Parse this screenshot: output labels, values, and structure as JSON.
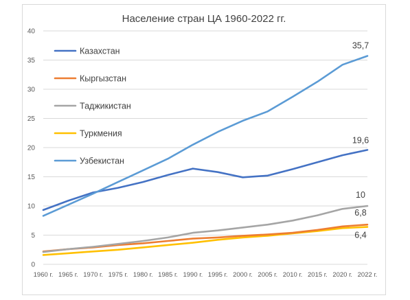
{
  "chart_data": {
    "type": "line",
    "title": "Население стран ЦА 1960-2022 гг.",
    "xlabel": "",
    "ylabel": "",
    "ylim": [
      0,
      40
    ],
    "yticks": [
      0,
      5,
      10,
      15,
      20,
      25,
      30,
      35,
      40
    ],
    "grid": true,
    "legend_position": "top-left",
    "categories": [
      "1960 г.",
      "1965 г.",
      "1970 г.",
      "1975 г.",
      "1980 г.",
      "1985 г.",
      "1990 г.",
      "1995 г.",
      "2000 г.",
      "2005 г.",
      "2010 г.",
      "2015 г.",
      "2020 г.",
      "2022 г."
    ],
    "series": [
      {
        "name": "Казахстан",
        "color": "#4472c4",
        "values": [
          9.3,
          10.9,
          12.3,
          13.1,
          14.1,
          15.3,
          16.4,
          15.8,
          14.9,
          15.2,
          16.3,
          17.5,
          18.7,
          19.6
        ],
        "end_label": "19,6"
      },
      {
        "name": "Кыргызстан",
        "color": "#ed7d31",
        "values": [
          2.2,
          2.6,
          2.9,
          3.3,
          3.6,
          4.0,
          4.4,
          4.6,
          4.9,
          5.1,
          5.4,
          5.9,
          6.5,
          6.8
        ],
        "end_label": "6,8"
      },
      {
        "name": "Таджикистан",
        "color": "#a5a5a5",
        "values": [
          2.1,
          2.6,
          3.0,
          3.5,
          4.0,
          4.6,
          5.4,
          5.8,
          6.3,
          6.8,
          7.5,
          8.4,
          9.5,
          10.0
        ],
        "end_label": "10"
      },
      {
        "name": "Туркмения",
        "color": "#ffc000",
        "values": [
          1.6,
          1.9,
          2.2,
          2.5,
          2.9,
          3.3,
          3.7,
          4.2,
          4.6,
          4.9,
          5.3,
          5.7,
          6.2,
          6.4
        ],
        "end_label": "6,4"
      },
      {
        "name": "Узбекистан",
        "color": "#5b9bd5",
        "values": [
          8.3,
          10.2,
          12.1,
          14.1,
          16.1,
          18.1,
          20.5,
          22.7,
          24.6,
          26.2,
          28.7,
          31.3,
          34.2,
          35.7
        ],
        "end_label": "35,7"
      }
    ]
  }
}
